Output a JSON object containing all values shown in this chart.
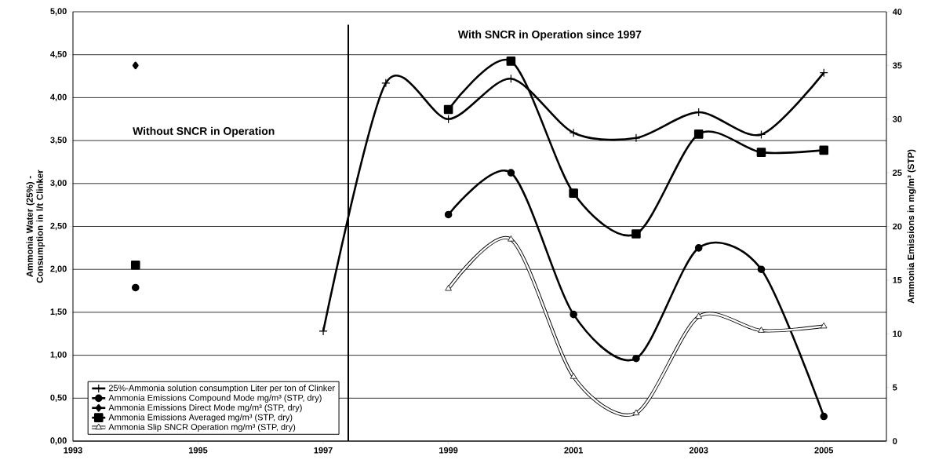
{
  "chart_data": {
    "type": "line",
    "ylabel": "Ammonia Water (25%) - Consumption in l/t Clinker",
    "y2label": "Ammonia Emissions in mg/m³ (STP)",
    "xlim": [
      1993,
      2006
    ],
    "xticks": [
      1993,
      1995,
      1997,
      1999,
      2001,
      2003,
      2005
    ],
    "ylim": [
      0,
      5
    ],
    "yticks": [
      {
        "value": 0,
        "label": "0,00"
      },
      {
        "value": 0.5,
        "label": "0,50"
      },
      {
        "value": 1,
        "label": "1,00"
      },
      {
        "value": 1.5,
        "label": "1,50"
      },
      {
        "value": 2,
        "label": "2,00"
      },
      {
        "value": 2.5,
        "label": "2,50"
      },
      {
        "value": 3,
        "label": "3,00"
      },
      {
        "value": 3.5,
        "label": "3,50"
      },
      {
        "value": 4,
        "label": "4,00"
      },
      {
        "value": 4.5,
        "label": "4,50"
      },
      {
        "value": 5,
        "label": "5,00"
      }
    ],
    "y2lim": [
      0,
      40
    ],
    "y2ticks": [
      0,
      5,
      10,
      15,
      20,
      25,
      30,
      35,
      40
    ],
    "grid": "y",
    "legend": "bottom left",
    "annotations": [
      "Without SNCR in Operation",
      "With SNCR in Operation since 1997"
    ],
    "ref_lines": [
      {
        "axis": "x",
        "value": 1997.4,
        "color": "#000000"
      }
    ],
    "series": [
      {
        "name": "25%-Ammonia solution consumption Liter per ton of Clinker",
        "color": "#000000",
        "marker": "cross",
        "x": [
          1997,
          1998,
          1999,
          2000,
          2001,
          2002,
          2003,
          2004,
          2005
        ],
        "values": [
          1.28,
          4.17,
          3.75,
          4.22,
          3.59,
          3.53,
          3.83,
          3.57,
          4.29
        ]
      },
      {
        "name": "Ammonia Emissions Compound Mode mg/m³ (STP, dry)",
        "color": "#000000",
        "marker": "circle",
        "axis": "y2",
        "x": [
          1994,
          1998,
          1999,
          2000,
          2001,
          2002,
          2003,
          2004,
          2005
        ],
        "values": [
          14.3,
          null,
          21.1,
          25.0,
          11.8,
          7.7,
          18.0,
          16.0,
          2.3
        ]
      },
      {
        "name": "Ammonia Emissions Direct Mode mg/m³ (STP, dry)",
        "color": "#000000",
        "marker": "diamond",
        "axis": "y2",
        "x": [
          1994
        ],
        "values": [
          35.0
        ]
      },
      {
        "name": "Ammonia Emissions Averaged mg/m³ (STP, dry)",
        "color": "#000000",
        "marker": "square",
        "axis": "y2",
        "x": [
          1994,
          1998,
          1999,
          2000,
          2001,
          2002,
          2003,
          2004,
          2005
        ],
        "values": [
          16.4,
          null,
          30.9,
          35.4,
          23.1,
          19.3,
          28.6,
          26.9,
          27.1
        ]
      },
      {
        "name": "Ammonia Slip SNCR Operation mg/m³ (STP, dry)",
        "color": "#000000",
        "marker": "triangle",
        "axis": "y2",
        "x": [
          1999,
          2000,
          2001,
          2002,
          2003,
          2004,
          2005
        ],
        "values": [
          14.2,
          18.8,
          6.0,
          2.6,
          11.6,
          10.3,
          10.7
        ]
      }
    ]
  }
}
